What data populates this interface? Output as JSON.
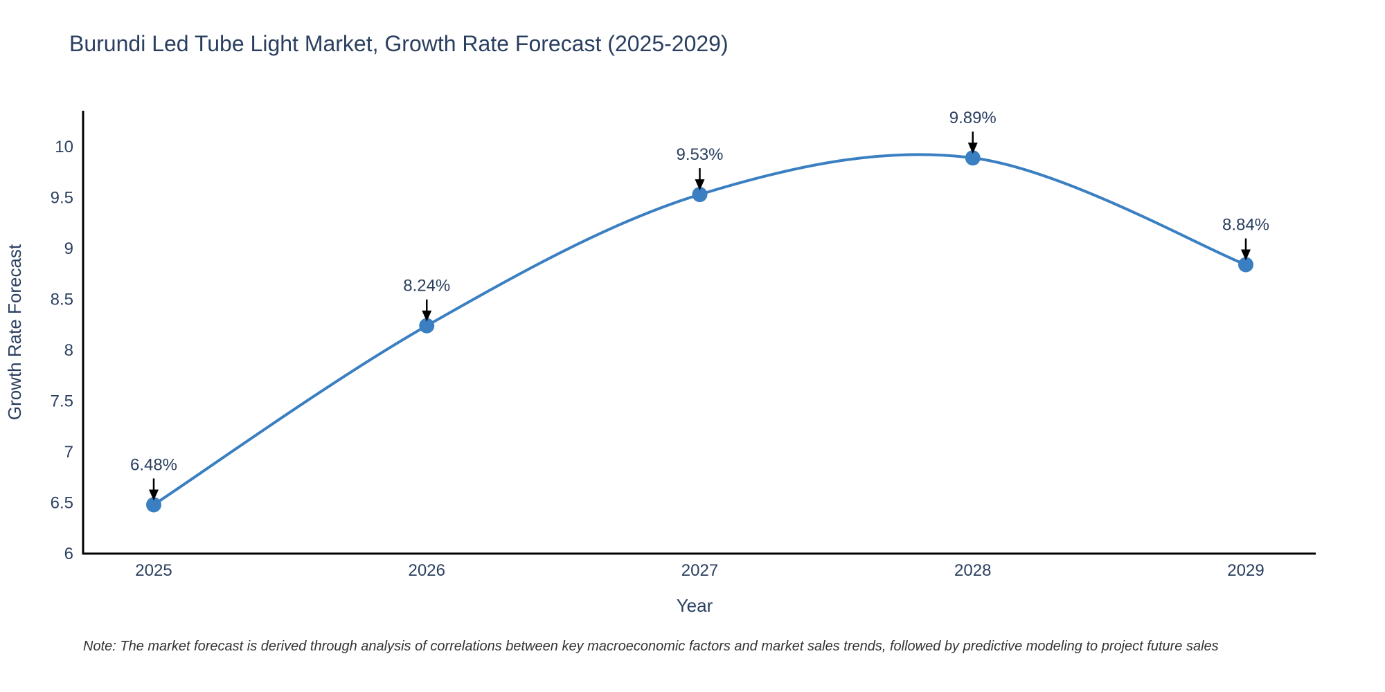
{
  "chart": {
    "title": "Burundi Led Tube Light Market, Growth Rate Forecast (2025-2029)",
    "xlabel": "Year",
    "ylabel": "Growth Rate Forecast",
    "note": "Note: The market forecast is derived through analysis of correlations between key macroeconomic factors and market sales trends, followed by predictive modeling to project future sales",
    "colors": {
      "line": "#3a7fc1",
      "marker": "#3a7fc1",
      "axis_line": "#000000",
      "text": "#2a3f5f",
      "annotation_text": "#2a3f5f",
      "arrow": "#000000",
      "note_text": "#333333",
      "background": "#ffffff"
    }
  },
  "chart_data": {
    "type": "line",
    "line_shape": "spline",
    "markers": true,
    "grid": false,
    "legend": false,
    "title": "Burundi Led Tube Light Market, Growth Rate Forecast (2025-2029)",
    "xlabel": "Year",
    "ylabel": "Growth Rate Forecast",
    "categories": [
      "2025",
      "2026",
      "2027",
      "2028",
      "2029"
    ],
    "values": [
      6.48,
      8.24,
      9.53,
      9.89,
      8.84
    ],
    "point_labels": [
      "6.48%",
      "8.24%",
      "9.53%",
      "9.89%",
      "8.84%"
    ],
    "ylim": [
      6,
      10
    ],
    "ytick_step": 0.5,
    "ytick_labels": [
      "6",
      "6.5",
      "7",
      "7.5",
      "8",
      "8.5",
      "9",
      "9.5",
      "10"
    ]
  }
}
